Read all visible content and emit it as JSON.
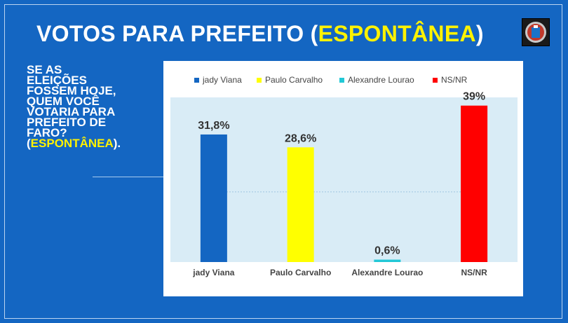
{
  "header": {
    "title_main": "VOTOS PARA PREFEITO (",
    "title_highlight": "ESPONTÂNEA",
    "title_end": ")"
  },
  "question": {
    "line1": "SE AS",
    "line2": "ELEIÇÕES",
    "line3": "FOSSEM HOJE,",
    "line4": "QUEM VOCÊ",
    "line5": "VOTARIA PARA",
    "line6": "PREFEITO DE",
    "line7": "FARO?",
    "paren_open": "(",
    "highlight": "ESPONTÂNEA",
    "paren_close": ")."
  },
  "logo": {
    "icon": "badge-logo-icon"
  },
  "chart_data": {
    "type": "bar",
    "categories": [
      "jady Viana",
      "Paulo Carvalho",
      "Alexandre Lourao",
      "NS/NR"
    ],
    "values": [
      31.8,
      28.6,
      0.6,
      39
    ],
    "data_labels": [
      "31,8%",
      "28,6%",
      "0,6%",
      "39%"
    ],
    "colors": [
      "#1466c2",
      "#ffff00",
      "#22c8d6",
      "#ff0000"
    ],
    "legend": [
      "jady Viana",
      "Paulo Carvalho",
      "Alexandre Lourao",
      "NS/NR"
    ],
    "legend_position": "top",
    "ylim": [
      0,
      40
    ],
    "reference_line": 17.5,
    "plot_background": "#d9ecf6",
    "grid": false
  }
}
